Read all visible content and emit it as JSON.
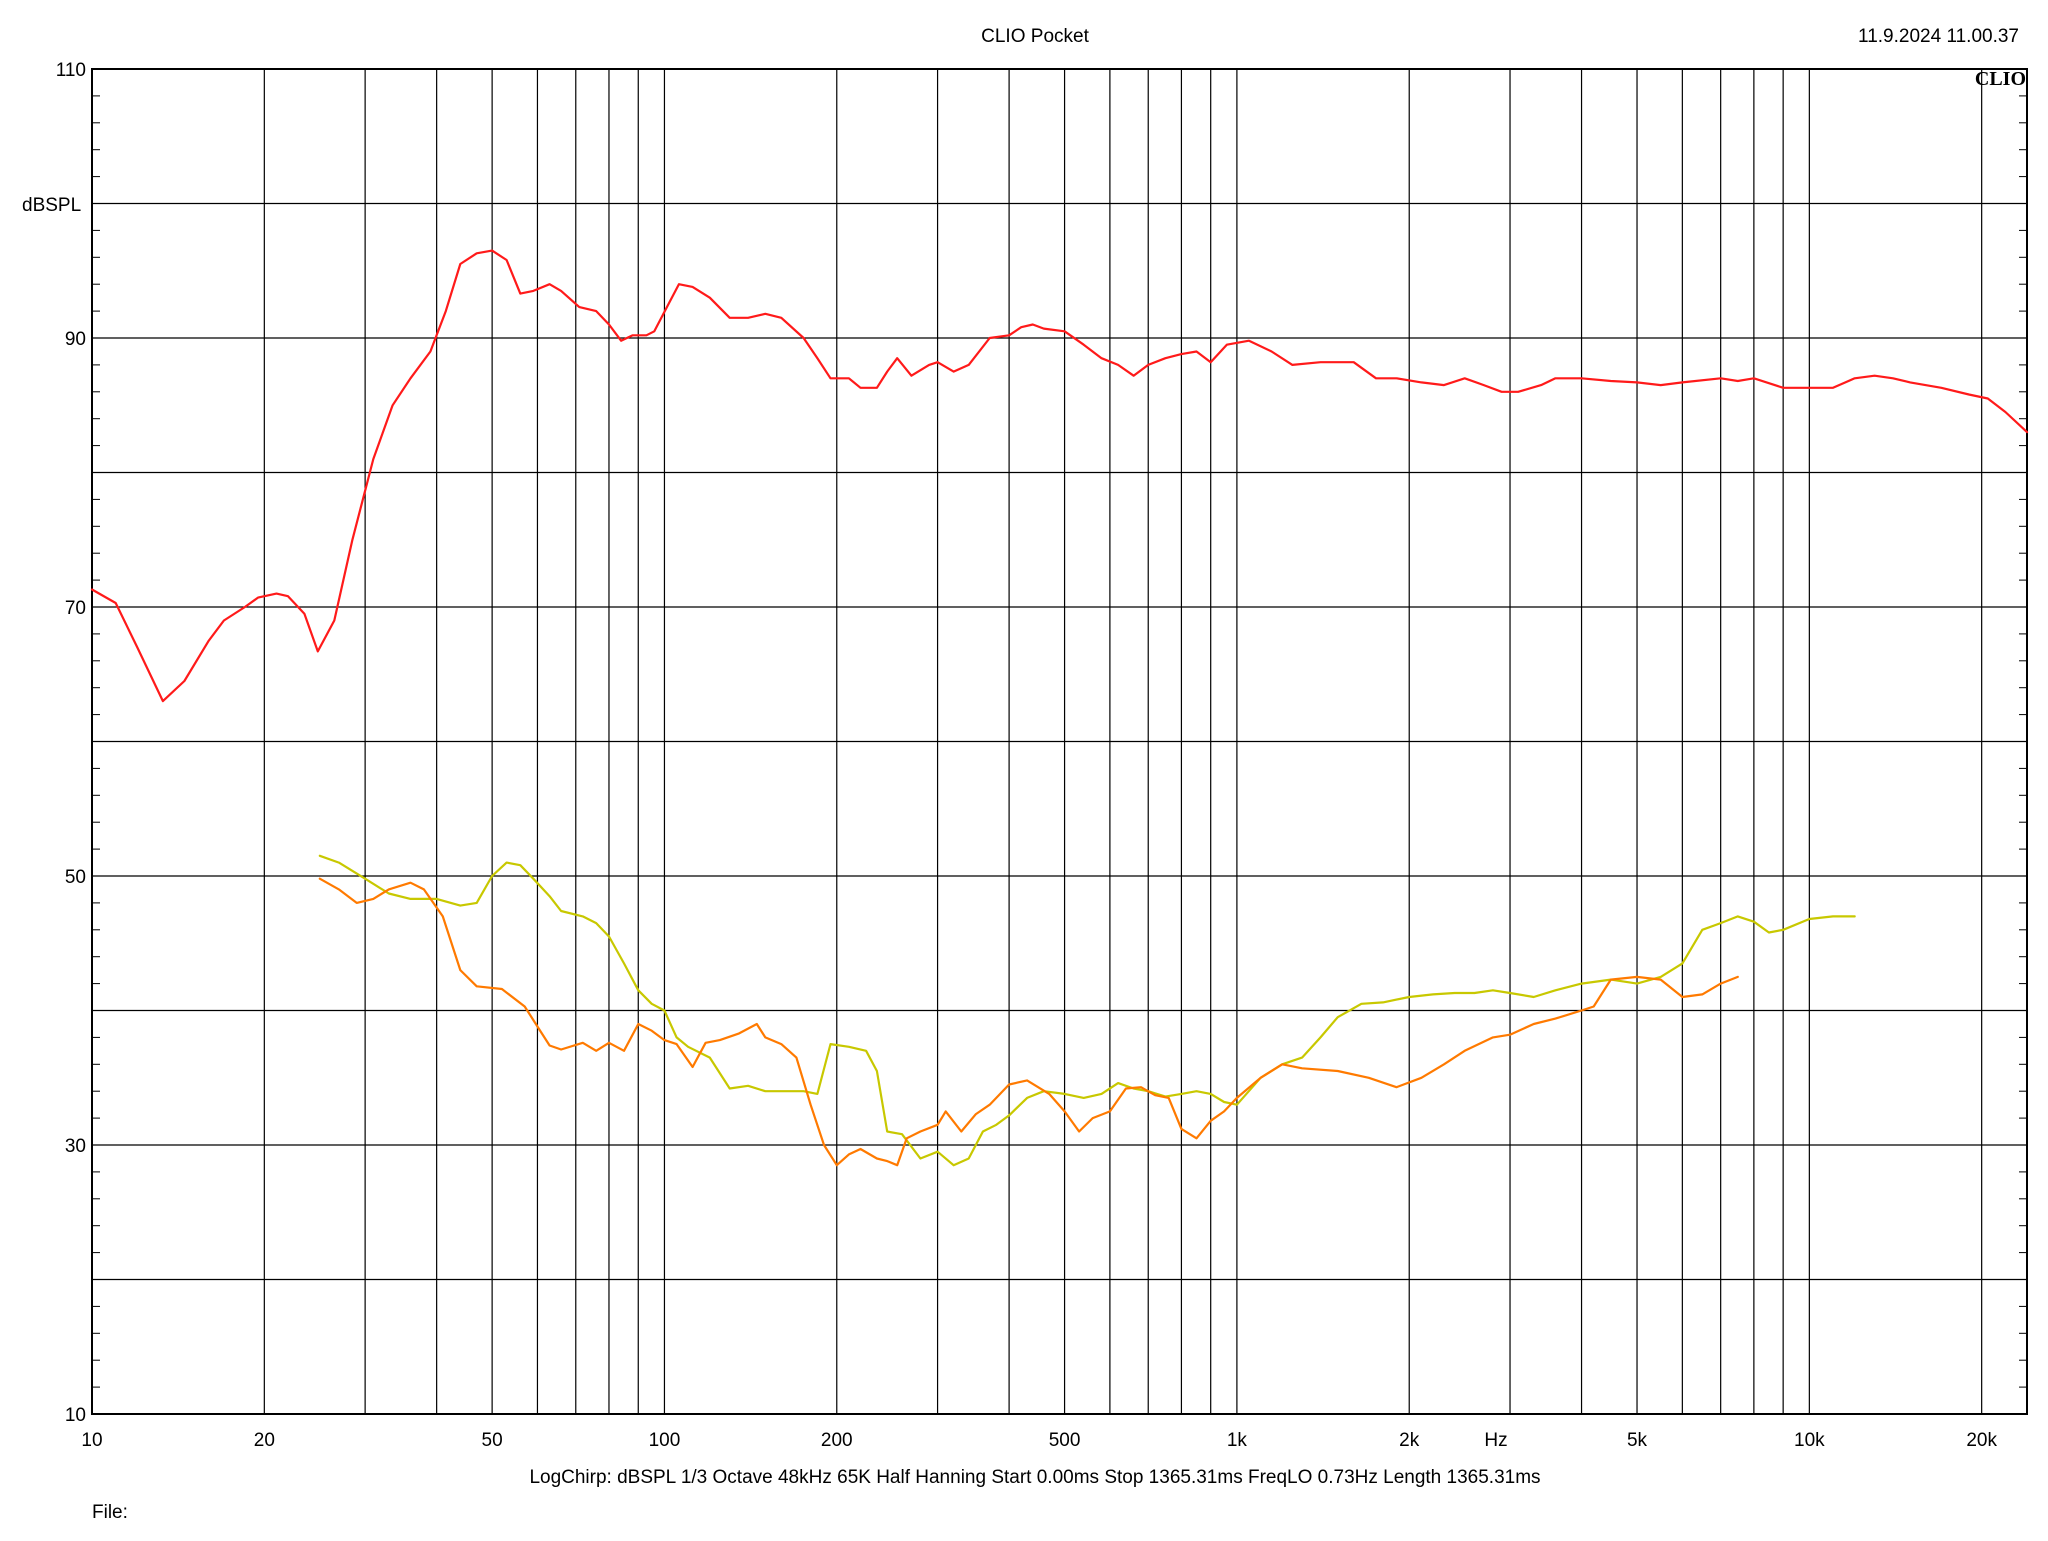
{
  "header": {
    "app_title": "CLIO Pocket",
    "timestamp": "11.9.2024 11.00.37",
    "logo": "CLIO"
  },
  "footer": {
    "params": "LogChirp:  dBSPL   1/3 Octave   48kHz   65K   Half Hanning   Start 0.00ms    Stop 1365.31ms    FreqLO 0.73Hz    Length 1365.31ms",
    "file_label": "File:"
  },
  "colors": {
    "background": "#ffffff",
    "grid": "#000000",
    "series_red": "#ff1a1a",
    "series_orange": "#ff7a00",
    "series_yellow": "#c8c800"
  },
  "chart_data": {
    "type": "line",
    "xscale": "log",
    "xlim": [
      10,
      24000
    ],
    "ylim": [
      10,
      110
    ],
    "ylabel": "dBSPL",
    "xlabel": "Hz",
    "grid": true,
    "x_ticks": [
      {
        "v": 10,
        "label": "10"
      },
      {
        "v": 20,
        "label": "20"
      },
      {
        "v": 50,
        "label": "50"
      },
      {
        "v": 100,
        "label": "100"
      },
      {
        "v": 200,
        "label": "200"
      },
      {
        "v": 500,
        "label": "500"
      },
      {
        "v": 1000,
        "label": "1k"
      },
      {
        "v": 2000,
        "label": "2k"
      },
      {
        "v": 5000,
        "label": "5k"
      },
      {
        "v": 10000,
        "label": "10k"
      },
      {
        "v": 20000,
        "label": "20k"
      }
    ],
    "y_ticks": [
      {
        "v": 110,
        "label": "110"
      },
      {
        "v": 90,
        "label": "90"
      },
      {
        "v": 70,
        "label": "70"
      },
      {
        "v": 50,
        "label": "50"
      },
      {
        "v": 30,
        "label": "30"
      },
      {
        "v": 10,
        "label": "10"
      }
    ],
    "series": [
      {
        "color_key": "series_red",
        "points": [
          [
            10,
            71.3
          ],
          [
            11,
            70.3
          ],
          [
            12,
            67
          ],
          [
            13.3,
            63
          ],
          [
            14.5,
            64.5
          ],
          [
            16,
            67.5
          ],
          [
            17,
            69
          ],
          [
            18.5,
            70
          ],
          [
            19.5,
            70.7
          ],
          [
            21,
            71
          ],
          [
            22,
            70.8
          ],
          [
            23.5,
            69.5
          ],
          [
            24.8,
            66.7
          ],
          [
            26.5,
            69
          ],
          [
            28.5,
            75
          ],
          [
            31,
            81
          ],
          [
            33.5,
            85
          ],
          [
            36,
            87
          ],
          [
            39,
            89
          ],
          [
            41.5,
            92
          ],
          [
            44,
            95.5
          ],
          [
            47,
            96.3
          ],
          [
            50,
            96.5
          ],
          [
            53,
            95.8
          ],
          [
            56,
            93.3
          ],
          [
            59,
            93.5
          ],
          [
            63,
            94
          ],
          [
            66,
            93.5
          ],
          [
            71,
            92.3
          ],
          [
            76,
            92
          ],
          [
            80,
            91
          ],
          [
            84,
            89.8
          ],
          [
            88,
            90.2
          ],
          [
            93,
            90.2
          ],
          [
            96,
            90.5
          ],
          [
            101,
            92.3
          ],
          [
            106,
            94
          ],
          [
            112,
            93.8
          ],
          [
            120,
            93
          ],
          [
            130,
            91.5
          ],
          [
            140,
            91.5
          ],
          [
            150,
            91.8
          ],
          [
            160,
            91.5
          ],
          [
            175,
            90
          ],
          [
            185,
            88.5
          ],
          [
            195,
            87
          ],
          [
            210,
            87
          ],
          [
            220,
            86.3
          ],
          [
            235,
            86.3
          ],
          [
            245,
            87.5
          ],
          [
            255,
            88.5
          ],
          [
            270,
            87.2
          ],
          [
            290,
            88
          ],
          [
            300,
            88.2
          ],
          [
            320,
            87.5
          ],
          [
            340,
            88
          ],
          [
            370,
            90
          ],
          [
            400,
            90.2
          ],
          [
            420,
            90.8
          ],
          [
            440,
            91
          ],
          [
            460,
            90.7
          ],
          [
            500,
            90.5
          ],
          [
            540,
            89.5
          ],
          [
            580,
            88.5
          ],
          [
            620,
            88
          ],
          [
            660,
            87.2
          ],
          [
            700,
            88
          ],
          [
            750,
            88.5
          ],
          [
            800,
            88.8
          ],
          [
            850,
            89
          ],
          [
            900,
            88.2
          ],
          [
            960,
            89.5
          ],
          [
            1050,
            89.8
          ],
          [
            1150,
            89
          ],
          [
            1250,
            88
          ],
          [
            1400,
            88.2
          ],
          [
            1600,
            88.2
          ],
          [
            1750,
            87
          ],
          [
            1900,
            87
          ],
          [
            2100,
            86.7
          ],
          [
            2300,
            86.5
          ],
          [
            2500,
            87
          ],
          [
            2700,
            86.5
          ],
          [
            2900,
            86
          ],
          [
            3100,
            86
          ],
          [
            3400,
            86.5
          ],
          [
            3600,
            87
          ],
          [
            4000,
            87
          ],
          [
            4500,
            86.8
          ],
          [
            5000,
            86.7
          ],
          [
            5500,
            86.5
          ],
          [
            6000,
            86.7
          ],
          [
            7000,
            87
          ],
          [
            7500,
            86.8
          ],
          [
            8000,
            87
          ],
          [
            9000,
            86.3
          ],
          [
            10000,
            86.3
          ],
          [
            11000,
            86.3
          ],
          [
            12000,
            87
          ],
          [
            13000,
            87.2
          ],
          [
            14000,
            87
          ],
          [
            15000,
            86.7
          ],
          [
            17000,
            86.3
          ],
          [
            19000,
            85.8
          ],
          [
            20500,
            85.5
          ],
          [
            22000,
            84.5
          ],
          [
            24000,
            83
          ]
        ]
      },
      {
        "color_key": "series_yellow",
        "points": [
          [
            25,
            51.5
          ],
          [
            27,
            51
          ],
          [
            30,
            49.8
          ],
          [
            33,
            48.7
          ],
          [
            36,
            48.3
          ],
          [
            40,
            48.3
          ],
          [
            44,
            47.8
          ],
          [
            47,
            48
          ],
          [
            50,
            50
          ],
          [
            53,
            51
          ],
          [
            56,
            50.8
          ],
          [
            59,
            49.8
          ],
          [
            63,
            48.5
          ],
          [
            66,
            47.4
          ],
          [
            72,
            47
          ],
          [
            76,
            46.5
          ],
          [
            80,
            45.5
          ],
          [
            85,
            43.5
          ],
          [
            90,
            41.5
          ],
          [
            95,
            40.5
          ],
          [
            100,
            40
          ],
          [
            105,
            38
          ],
          [
            110,
            37.3
          ],
          [
            120,
            36.5
          ],
          [
            130,
            34.2
          ],
          [
            140,
            34.4
          ],
          [
            150,
            34
          ],
          [
            160,
            34
          ],
          [
            175,
            34
          ],
          [
            185,
            33.8
          ],
          [
            195,
            37.5
          ],
          [
            210,
            37.3
          ],
          [
            225,
            37
          ],
          [
            235,
            35.5
          ],
          [
            245,
            31
          ],
          [
            260,
            30.8
          ],
          [
            280,
            29
          ],
          [
            300,
            29.5
          ],
          [
            320,
            28.5
          ],
          [
            340,
            29
          ],
          [
            360,
            31
          ],
          [
            380,
            31.5
          ],
          [
            400,
            32.2
          ],
          [
            430,
            33.5
          ],
          [
            460,
            34
          ],
          [
            500,
            33.8
          ],
          [
            540,
            33.5
          ],
          [
            580,
            33.8
          ],
          [
            620,
            34.6
          ],
          [
            660,
            34.2
          ],
          [
            700,
            34
          ],
          [
            750,
            33.6
          ],
          [
            800,
            33.8
          ],
          [
            850,
            34
          ],
          [
            900,
            33.8
          ],
          [
            950,
            33.2
          ],
          [
            1000,
            33
          ],
          [
            1100,
            35
          ],
          [
            1200,
            36
          ],
          [
            1300,
            36.5
          ],
          [
            1400,
            38
          ],
          [
            1500,
            39.5
          ],
          [
            1650,
            40.5
          ],
          [
            1800,
            40.6
          ],
          [
            2000,
            41
          ],
          [
            2200,
            41.2
          ],
          [
            2400,
            41.3
          ],
          [
            2600,
            41.3
          ],
          [
            2800,
            41.5
          ],
          [
            3000,
            41.3
          ],
          [
            3300,
            41
          ],
          [
            3600,
            41.5
          ],
          [
            4000,
            42
          ],
          [
            4500,
            42.3
          ],
          [
            5000,
            42
          ],
          [
            5500,
            42.5
          ],
          [
            6000,
            43.5
          ],
          [
            6500,
            46
          ],
          [
            7000,
            46.5
          ],
          [
            7500,
            47
          ],
          [
            8000,
            46.6
          ],
          [
            8500,
            45.8
          ],
          [
            9000,
            46
          ],
          [
            10000,
            46.8
          ],
          [
            11000,
            47
          ],
          [
            12000,
            47
          ]
        ]
      },
      {
        "color_key": "series_orange",
        "points": [
          [
            25,
            49.8
          ],
          [
            27,
            49
          ],
          [
            29,
            48
          ],
          [
            31,
            48.3
          ],
          [
            33,
            49
          ],
          [
            36,
            49.5
          ],
          [
            38,
            49
          ],
          [
            41,
            47
          ],
          [
            44,
            43
          ],
          [
            47,
            41.8
          ],
          [
            52,
            41.6
          ],
          [
            57,
            40.3
          ],
          [
            60,
            38.8
          ],
          [
            63,
            37.4
          ],
          [
            66,
            37.1
          ],
          [
            72,
            37.6
          ],
          [
            76,
            37
          ],
          [
            80,
            37.6
          ],
          [
            85,
            37
          ],
          [
            90,
            39
          ],
          [
            95,
            38.5
          ],
          [
            100,
            37.8
          ],
          [
            105,
            37.5
          ],
          [
            112,
            35.8
          ],
          [
            118,
            37.6
          ],
          [
            125,
            37.8
          ],
          [
            135,
            38.3
          ],
          [
            145,
            39
          ],
          [
            150,
            38
          ],
          [
            160,
            37.5
          ],
          [
            170,
            36.5
          ],
          [
            180,
            33
          ],
          [
            190,
            30
          ],
          [
            200,
            28.5
          ],
          [
            210,
            29.3
          ],
          [
            220,
            29.7
          ],
          [
            235,
            29
          ],
          [
            245,
            28.8
          ],
          [
            255,
            28.5
          ],
          [
            265,
            30.5
          ],
          [
            280,
            31
          ],
          [
            300,
            31.5
          ],
          [
            310,
            32.5
          ],
          [
            330,
            31
          ],
          [
            350,
            32.3
          ],
          [
            370,
            33
          ],
          [
            400,
            34.5
          ],
          [
            430,
            34.8
          ],
          [
            470,
            33.8
          ],
          [
            500,
            32.5
          ],
          [
            530,
            31
          ],
          [
            560,
            32
          ],
          [
            600,
            32.5
          ],
          [
            640,
            34.2
          ],
          [
            680,
            34.3
          ],
          [
            720,
            33.7
          ],
          [
            760,
            33.5
          ],
          [
            800,
            31.2
          ],
          [
            850,
            30.5
          ],
          [
            900,
            31.8
          ],
          [
            950,
            32.5
          ],
          [
            1000,
            33.5
          ],
          [
            1100,
            35
          ],
          [
            1200,
            36
          ],
          [
            1300,
            35.7
          ],
          [
            1500,
            35.5
          ],
          [
            1700,
            35
          ],
          [
            1900,
            34.3
          ],
          [
            2100,
            35
          ],
          [
            2300,
            36
          ],
          [
            2500,
            37
          ],
          [
            2800,
            38
          ],
          [
            3000,
            38.2
          ],
          [
            3300,
            39
          ],
          [
            3600,
            39.4
          ],
          [
            4000,
            40
          ],
          [
            4200,
            40.3
          ],
          [
            4500,
            42.3
          ],
          [
            5000,
            42.5
          ],
          [
            5500,
            42.3
          ],
          [
            6000,
            41
          ],
          [
            6500,
            41.2
          ],
          [
            7000,
            42
          ],
          [
            7500,
            42.5
          ]
        ]
      }
    ]
  }
}
